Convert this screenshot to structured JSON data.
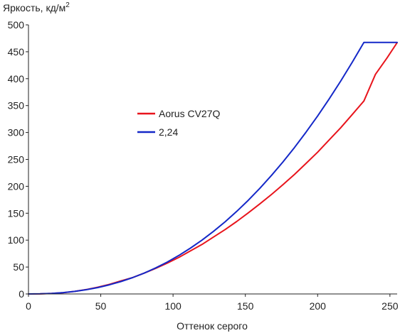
{
  "chart_data": {
    "type": "line",
    "xlabel": "Оттенок серого",
    "ylabel": "Яркость, кд/м",
    "ylabel_superscript": "2",
    "xlim": [
      0,
      255
    ],
    "ylim": [
      0,
      500
    ],
    "xticks": [
      0,
      50,
      100,
      150,
      200,
      250
    ],
    "yticks": [
      0,
      50,
      100,
      150,
      200,
      250,
      300,
      350,
      400,
      450,
      500
    ],
    "grid": false,
    "legend_position": "center-left",
    "series": [
      {
        "name": "Aorus CV27Q",
        "color": "#e8141c",
        "x": [
          0,
          8,
          16,
          24,
          32,
          40,
          48,
          56,
          64,
          72,
          80,
          88,
          96,
          104,
          112,
          120,
          128,
          136,
          144,
          152,
          160,
          168,
          176,
          184,
          192,
          200,
          208,
          216,
          224,
          232,
          240,
          248,
          255
        ],
        "y": [
          0,
          0.1,
          0.9,
          2.4,
          4.8,
          8.2,
          12.5,
          17.8,
          24.3,
          30.5,
          38.7,
          47.5,
          57.2,
          67.9,
          80.0,
          91.9,
          105.8,
          119.7,
          134.5,
          150.6,
          167.3,
          184.7,
          203.1,
          222.2,
          242.6,
          263.5,
          286.1,
          309.0,
          333.5,
          358.6,
          408.0,
          438.5,
          467.0
        ]
      },
      {
        "name": "2,24",
        "color": "#1428c8",
        "x": [
          0,
          8,
          16,
          24,
          32,
          40,
          48,
          56,
          64,
          72,
          80,
          88,
          96,
          104,
          112,
          120,
          128,
          136,
          144,
          152,
          160,
          168,
          176,
          184,
          192,
          200,
          208,
          216,
          224,
          232,
          240,
          248,
          255
        ],
        "y": [
          0,
          0.2,
          1.0,
          2.5,
          4.7,
          7.9,
          11.9,
          17.0,
          23.1,
          30.3,
          38.7,
          48.4,
          59.3,
          71.5,
          85.1,
          100.0,
          116.3,
          134.1,
          153.3,
          174.0,
          196.2,
          220.0,
          245.3,
          272.2,
          300.7,
          330.7,
          362.4,
          395.8,
          430.8,
          467.4,
          467.4,
          467.4,
          467.4
        ]
      }
    ]
  }
}
